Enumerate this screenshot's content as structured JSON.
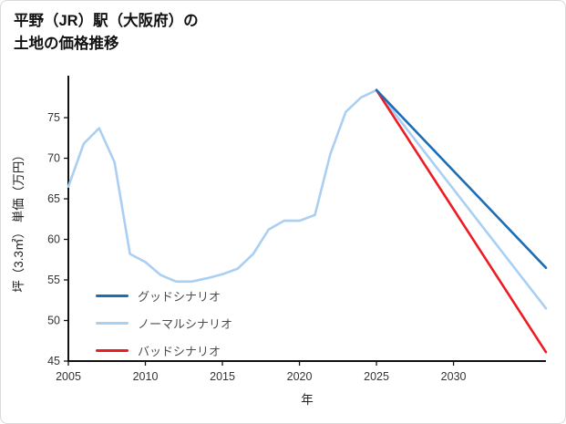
{
  "page": {
    "title": "平野（JR）駅（大阪府）の\n土地の価格推移"
  },
  "chart_data": {
    "type": "line",
    "title": "平野（JR）駅（大阪府）の土地の価格推移",
    "xlabel": "年",
    "ylabel": "坪（3.3㎡） 単価（万円）",
    "xlim": [
      2005,
      2036
    ],
    "ylim": [
      45,
      79.5
    ],
    "xticks": [
      2005,
      2010,
      2015,
      2020,
      2025,
      2030
    ],
    "yticks": [
      45,
      50,
      55,
      60,
      65,
      70,
      75
    ],
    "grid": false,
    "legend_position": "inside-lower-left",
    "axis_color": "#111111",
    "tick_label_color": "#333333",
    "series": [
      {
        "name": "グッドシナリオ",
        "color": "#1b6db5",
        "z": 3,
        "x": [
          2025,
          2036
        ],
        "values": [
          78.4,
          56.5
        ]
      },
      {
        "name": "ノーマルシナリオ",
        "color": "#a9cff2",
        "z": 1,
        "x": [
          2005,
          2006,
          2007,
          2008,
          2009,
          2010,
          2011,
          2012,
          2013,
          2014,
          2015,
          2016,
          2017,
          2018,
          2019,
          2020,
          2021,
          2022,
          2023,
          2024,
          2025,
          2036
        ],
        "values": [
          66.5,
          71.8,
          73.7,
          69.5,
          58.2,
          57.2,
          55.6,
          54.8,
          54.8,
          55.2,
          55.7,
          56.4,
          58.2,
          61.2,
          62.3,
          62.3,
          63.0,
          70.5,
          75.7,
          77.5,
          78.4,
          51.5
        ]
      },
      {
        "name": "バッドシナリオ",
        "color": "#ed1c24",
        "z": 2,
        "x": [
          2025,
          2036
        ],
        "values": [
          78.4,
          46.1
        ]
      }
    ]
  }
}
